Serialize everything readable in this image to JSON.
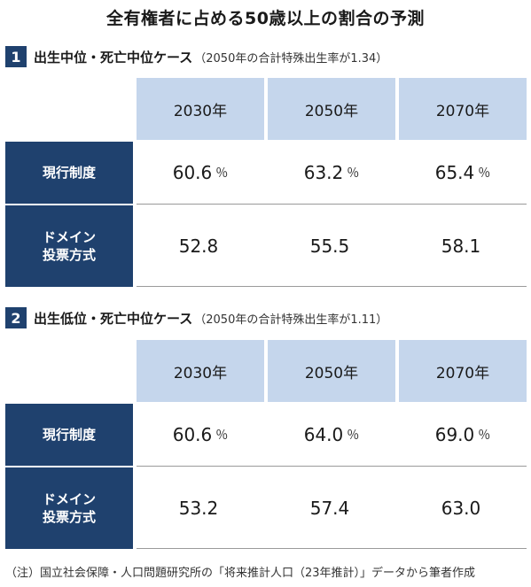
{
  "title": "全有権者に占める50歳以上の割合の予測",
  "cases": [
    {
      "number": "1",
      "title": "出生中位・死亡中位ケース",
      "note": "（2050年の合計特殊出生率が1.34）",
      "years": [
        "2030年",
        "2050年",
        "2070年"
      ],
      "rows": [
        {
          "label_lines": [
            "現行制度"
          ],
          "values": [
            {
              "value": "60.6",
              "unit": "％"
            },
            {
              "value": "63.2",
              "unit": "％"
            },
            {
              "value": "65.4",
              "unit": "％"
            }
          ]
        },
        {
          "label_lines": [
            "ドメイン",
            "投票方式"
          ],
          "values": [
            {
              "value": "52.8",
              "unit": ""
            },
            {
              "value": "55.5",
              "unit": ""
            },
            {
              "value": "58.1",
              "unit": ""
            }
          ]
        }
      ]
    },
    {
      "number": "2",
      "title": "出生低位・死亡中位ケース",
      "note": "（2050年の合計特殊出生率が1.11）",
      "years": [
        "2030年",
        "2050年",
        "2070年"
      ],
      "rows": [
        {
          "label_lines": [
            "現行制度"
          ],
          "values": [
            {
              "value": "60.6",
              "unit": "％"
            },
            {
              "value": "64.0",
              "unit": "％"
            },
            {
              "value": "69.0",
              "unit": "％"
            }
          ]
        },
        {
          "label_lines": [
            "ドメイン",
            "投票方式"
          ],
          "values": [
            {
              "value": "53.2",
              "unit": ""
            },
            {
              "value": "57.4",
              "unit": ""
            },
            {
              "value": "63.0",
              "unit": ""
            }
          ]
        }
      ]
    }
  ],
  "footnote": "（注）国立社会保障・人口問題研究所の「将来推計人口（23年推計）」データから筆者作成",
  "colors": {
    "navy": "#1f416e",
    "light_blue": "#c5d6ec"
  }
}
